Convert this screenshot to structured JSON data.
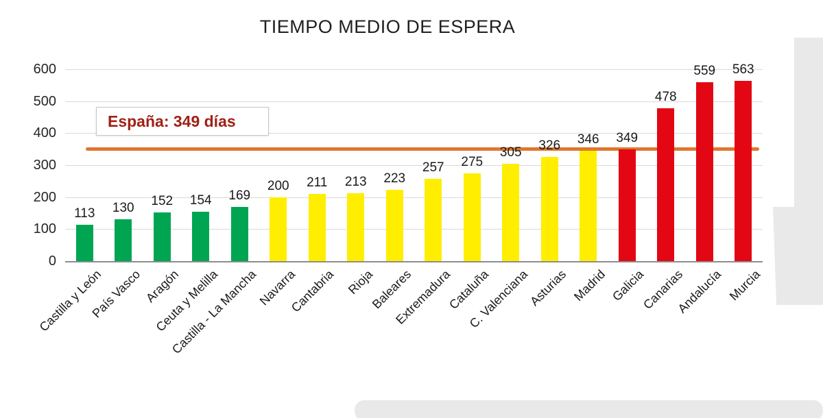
{
  "chart_data": {
    "type": "bar",
    "title": "TIEMPO MEDIO DE ESPERA",
    "xlabel": "",
    "ylabel": "",
    "ylim": [
      0,
      600
    ],
    "yticks": [
      0,
      100,
      200,
      300,
      400,
      500,
      600
    ],
    "grid": true,
    "legend": false,
    "categories": [
      "Castilla y León",
      "País Vasco",
      "Aragón",
      "Ceuta y Melilla",
      "Castilla - La Mancha",
      "Navarra",
      "Cantabria",
      "Rioja",
      "Baleares",
      "Extremadura",
      "Cataluña",
      "C. Valenciana",
      "Asturias",
      "Madrid",
      "Galicia",
      "Canarias",
      "Andalucía",
      "Murcia"
    ],
    "values": [
      113,
      130,
      152,
      154,
      169,
      200,
      211,
      213,
      223,
      257,
      275,
      305,
      326,
      346,
      349,
      478,
      559,
      563
    ],
    "bar_colors": [
      "green",
      "green",
      "green",
      "green",
      "green",
      "yellow",
      "yellow",
      "yellow",
      "yellow",
      "yellow",
      "yellow",
      "yellow",
      "yellow",
      "yellow",
      "red",
      "red",
      "red",
      "red"
    ],
    "colors": {
      "green": "#00a551",
      "yellow": "#ffee00",
      "red": "#e30613",
      "gridline": "#d9d9d9",
      "axis": "#8c8c8c",
      "watermark": "#e9e9e9"
    },
    "reference_line": {
      "value": 349,
      "label": "España: 349 días",
      "color": "#e0772f",
      "label_color": "#a02115"
    }
  }
}
